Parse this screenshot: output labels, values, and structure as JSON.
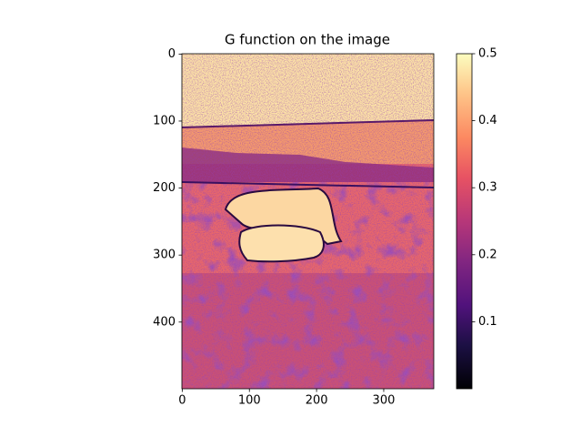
{
  "chart_data": {
    "type": "image",
    "title": "G function on the image",
    "xlim": [
      -0.5,
      374.5
    ],
    "ylim": [
      499.5,
      -0.5
    ],
    "xticks": [
      0,
      100,
      200,
      300
    ],
    "yticks": [
      0,
      100,
      200,
      300,
      400
    ],
    "colormap": "magma",
    "clim": [
      0,
      0.5
    ],
    "colorbar_ticks": [
      0.1,
      0.2,
      0.3,
      0.4,
      0.5
    ]
  }
}
